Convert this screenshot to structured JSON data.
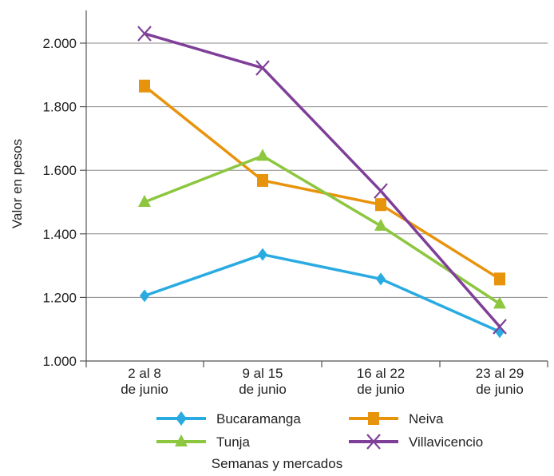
{
  "chart_data": {
    "type": "line",
    "categories": [
      [
        "2 al 8",
        "de junio"
      ],
      [
        "9 al 15",
        "de junio"
      ],
      [
        "16 al 22",
        "de junio"
      ],
      [
        "23 al 29",
        "de junio"
      ]
    ],
    "ylabel": "Valor en pesos",
    "xlabel": "Semanas y mercados",
    "ylim": [
      1000,
      2000
    ],
    "yticks": [
      1000,
      1200,
      1400,
      1600,
      1800,
      2000
    ],
    "ytick_labels": [
      "1.000",
      "1.200",
      "1.400",
      "1.600",
      "1.800",
      "2.000"
    ],
    "grid": "horizontal",
    "legend_position": "bottom",
    "series": [
      {
        "name": "Bucaramanga",
        "values": [
          1205,
          1335,
          1258,
          1092
        ],
        "color": "#29abe2",
        "marker": "diamond"
      },
      {
        "name": "Neiva",
        "values": [
          1865,
          1568,
          1492,
          1258
        ],
        "color": "#e8930c",
        "marker": "square"
      },
      {
        "name": "Tunja",
        "values": [
          1500,
          1645,
          1425,
          1180
        ],
        "color": "#8dc63f",
        "marker": "triangle"
      },
      {
        "name": "Villavicencio",
        "values": [
          2030,
          1922,
          1535,
          1108
        ],
        "color": "#7f3f98",
        "marker": "x"
      }
    ]
  }
}
